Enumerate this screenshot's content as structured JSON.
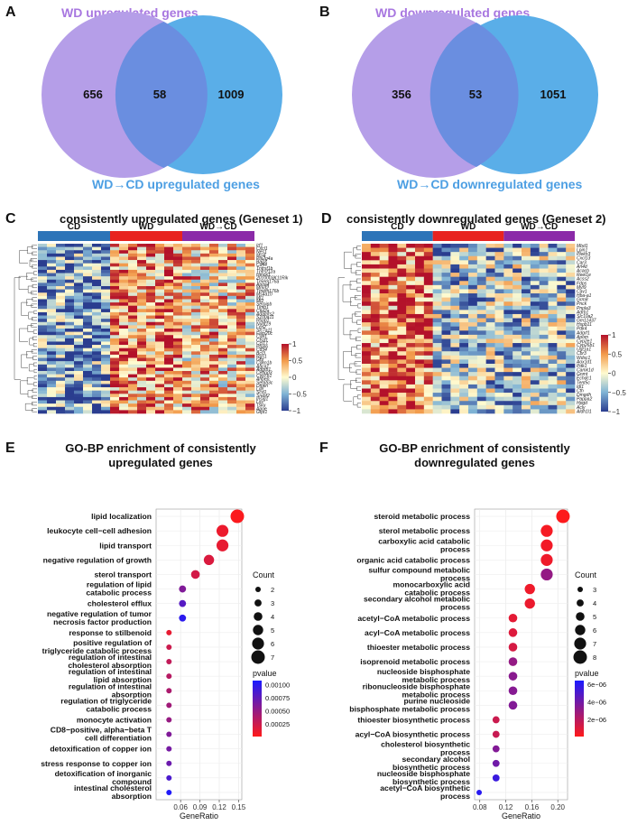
{
  "panels": {
    "A": {
      "label": "A",
      "title_left": "WD upregulated genes",
      "title_right": "WD→CD upregulated genes",
      "left_only": "656",
      "overlap": "58",
      "right_only": "1009",
      "colors": {
        "left": "#b59ee8",
        "right": "#5aaee8",
        "overlap": "#6a8ee0",
        "title_left": "#a877e0",
        "title_right": "#4d9fe3"
      }
    },
    "B": {
      "label": "B",
      "title_left": "WD downregulated genes",
      "title_right": "WD→CD downregulated genes",
      "left_only": "356",
      "overlap": "53",
      "right_only": "1051",
      "colors": {
        "left": "#b59ee8",
        "right": "#5aaee8",
        "overlap": "#6a8ee0",
        "title_left": "#a877e0",
        "title_right": "#4d9fe3"
      }
    },
    "C": {
      "label": "C",
      "title": "consistently upregulated genes (Geneset 1)",
      "groups": [
        "CD",
        "WD",
        "WD→CD"
      ],
      "group_colors": [
        "#2d74b8",
        "#e8231f",
        "#8b2aa8"
      ],
      "genes": [
        "Irf1",
        "Cxcl1",
        "Nes1",
        "Msi4",
        "Pla2g4a",
        "Bag3",
        "Cd44",
        "Tnfrsf1b",
        "Tnfrsf12a",
        "Hmox1",
        "2010003K11Rik",
        "Tmem176a",
        "Apoa4",
        "Mmd2",
        "Tmem176b",
        "Ms4a10",
        "Mt1",
        "Mt2",
        "Serpinb",
        "Timp1",
        "Ctla2a",
        "Adamts2",
        "S100a11",
        "Hspb1",
        "Nudt19",
        "Lcn2",
        "Slc7a11",
        "Fam20c",
        "Cd81",
        "Ctsd1",
        "Ccl17",
        "Ptpn6",
        "Cd34",
        "Bcl3",
        "Rgs1",
        "Ghr",
        "Cdkn1b",
        "Abca1",
        "Adgrb1",
        "Cebpd3",
        "Cyp7b1",
        "Anpep",
        "Sema3c",
        "Dmkn",
        "Ldlr",
        "Scd1",
        "Srebf2",
        "Insig1",
        "Lss",
        "Tsku",
        "Apoe",
        "Gfpt1"
      ],
      "colorbar": {
        "ticks": [
          "1",
          "0.5",
          "0",
          "−0.5",
          "−1"
        ],
        "values": [
          1,
          0.5,
          0,
          -0.5,
          -1
        ]
      }
    },
    "D": {
      "label": "D",
      "title": "consistently downregulated genes (Geneset 2)",
      "groups": [
        "CD",
        "WD",
        "WD→CD"
      ],
      "group_colors": [
        "#2d74b8",
        "#e8231f",
        "#8b2aa8"
      ],
      "genes": [
        "Mbd1",
        "Lpin1",
        "Plekh3",
        "Cxcl13",
        "Car3",
        "Arl4d",
        "Acacb",
        "Reel1e",
        "Acss2",
        "Fdps",
        "Myl9",
        "Cav1",
        "Hba-a1",
        "Grm8",
        "Pnck",
        "Pnpla3",
        "Adrb1",
        "Slc10a2",
        "Gm11437",
        "Hspb11",
        "Pdk4",
        "Adgrf1",
        "Apom",
        "Cyp2e1",
        "Cyp26b1",
        "Ugt1a1",
        "Cbr3",
        "Wdsc1",
        "Aox1d1",
        "Pdk1",
        "Camk1d",
        "Gnmt",
        "Echdc1",
        "Tent5c",
        "Idi1",
        "Cth",
        "Dmgdh",
        "Pappa2",
        "Hpgd",
        "Acly",
        "Aldh1l1"
      ],
      "colorbar": {
        "ticks": [
          "1",
          "0.5",
          "0",
          "−0.5",
          "−1"
        ],
        "values": [
          1,
          0.5,
          0,
          -0.5,
          -1
        ]
      }
    },
    "E": {
      "label": "E",
      "title_lines": [
        "GO-BP enrichment of consistently",
        "upregulated genes"
      ]
    },
    "F": {
      "label": "F",
      "title_lines": [
        "GO-BP enrichment of consistently",
        "downregulated genes"
      ]
    }
  },
  "chart_data": [
    {
      "panel": "E",
      "type": "scatter",
      "title": "GO-BP enrichment of consistently upregulated genes",
      "xlabel": "GeneRatio",
      "ylabel": "",
      "xlim": [
        0.022,
        0.155
      ],
      "xticks": [
        0.06,
        0.09,
        0.12,
        0.15
      ],
      "xticklabels": [
        "0.06",
        "0.09",
        "0.12",
        "0.15"
      ],
      "terms": [
        {
          "lines": [
            "lipid localization"
          ],
          "gene_ratio": 0.148,
          "count": 7,
          "pvalue": 3e-05
        },
        {
          "lines": [
            "leukocyte cell−cell adhesion"
          ],
          "gene_ratio": 0.125,
          "count": 6,
          "pvalue": 0.0001
        },
        {
          "lines": [
            "lipid transport"
          ],
          "gene_ratio": 0.125,
          "count": 6,
          "pvalue": 0.00012
        },
        {
          "lines": [
            "negative regulation of growth"
          ],
          "gene_ratio": 0.104,
          "count": 5,
          "pvalue": 0.00018
        },
        {
          "lines": [
            "sterol transport"
          ],
          "gene_ratio": 0.083,
          "count": 4,
          "pvalue": 0.00022
        },
        {
          "lines": [
            "regulation of lipid",
            "catabolic process"
          ],
          "gene_ratio": 0.063,
          "count": 3,
          "pvalue": 0.0006
        },
        {
          "lines": [
            "cholesterol efflux"
          ],
          "gene_ratio": 0.063,
          "count": 3,
          "pvalue": 0.0008
        },
        {
          "lines": [
            "negative regulation of tumor",
            "necrosis factor production"
          ],
          "gene_ratio": 0.063,
          "count": 3,
          "pvalue": 0.001
        },
        {
          "lines": [
            "response to stilbenoid"
          ],
          "gene_ratio": 0.042,
          "count": 2,
          "pvalue": 0.00012
        },
        {
          "lines": [
            "positive regulation of",
            "triglyceride catabolic process"
          ],
          "gene_ratio": 0.042,
          "count": 2,
          "pvalue": 0.00025
        },
        {
          "lines": [
            "regulation of intestinal",
            "cholesterol absorption"
          ],
          "gene_ratio": 0.042,
          "count": 2,
          "pvalue": 0.0003
        },
        {
          "lines": [
            "regulation of intestinal",
            "lipid absorption"
          ],
          "gene_ratio": 0.042,
          "count": 2,
          "pvalue": 0.00035
        },
        {
          "lines": [
            "regulation of intestinal",
            "absorption"
          ],
          "gene_ratio": 0.042,
          "count": 2,
          "pvalue": 0.0004
        },
        {
          "lines": [
            "regulation of triglyceride",
            "catabolic process"
          ],
          "gene_ratio": 0.042,
          "count": 2,
          "pvalue": 0.00045
        },
        {
          "lines": [
            "monocyte activation"
          ],
          "gene_ratio": 0.042,
          "count": 2,
          "pvalue": 0.0005
        },
        {
          "lines": [
            "CD8−positive, alpha−beta T",
            "cell differentiation"
          ],
          "gene_ratio": 0.042,
          "count": 2,
          "pvalue": 0.0006
        },
        {
          "lines": [
            "detoxification of copper ion"
          ],
          "gene_ratio": 0.042,
          "count": 2,
          "pvalue": 0.00065
        },
        {
          "lines": [
            "stress response to copper ion"
          ],
          "gene_ratio": 0.042,
          "count": 2,
          "pvalue": 0.0007
        },
        {
          "lines": [
            "detoxification of inorganic",
            "compound"
          ],
          "gene_ratio": 0.042,
          "count": 2,
          "pvalue": 0.00085
        },
        {
          "lines": [
            "intestinal cholesterol",
            "absorption"
          ],
          "gene_ratio": 0.042,
          "count": 2,
          "pvalue": 0.00105
        }
      ],
      "legend_count": {
        "title": "Count",
        "values": [
          2,
          3,
          4,
          5,
          6,
          7
        ]
      },
      "legend_color": {
        "title": "pvalue",
        "ticks": [
          0.001,
          0.00075,
          0.0005,
          0.00025
        ],
        "ticklabels": [
          "0.00100",
          "0.00075",
          "0.00050",
          "0.00025"
        ],
        "range": [
          1e-05,
          0.00108
        ],
        "low_color": "#ff1a1a",
        "high_color": "#1a1aff"
      }
    },
    {
      "panel": "F",
      "type": "scatter",
      "title": "GO-BP enrichment of consistently downregulated genes",
      "xlabel": "GeneRatio",
      "ylabel": "",
      "xlim": [
        0.072,
        0.215
      ],
      "xticks": [
        0.08,
        0.12,
        0.16,
        0.2
      ],
      "xticklabels": [
        "0.08",
        "0.12",
        "0.16",
        "0.20"
      ],
      "terms": [
        {
          "lines": [
            "steroid metabolic process"
          ],
          "gene_ratio": 0.208,
          "count": 8,
          "pvalue": 1e-07
        },
        {
          "lines": [
            "sterol metabolic process"
          ],
          "gene_ratio": 0.183,
          "count": 7,
          "pvalue": 3e-07
        },
        {
          "lines": [
            "carboxylic acid catabolic",
            "process"
          ],
          "gene_ratio": 0.183,
          "count": 7,
          "pvalue": 4e-07
        },
        {
          "lines": [
            "organic acid catabolic process"
          ],
          "gene_ratio": 0.183,
          "count": 7,
          "pvalue": 5e-07
        },
        {
          "lines": [
            "sulfur compound metabolic",
            "process"
          ],
          "gene_ratio": 0.183,
          "count": 7,
          "pvalue": 3e-06
        },
        {
          "lines": [
            "monocarboxylic acid",
            "catabolic process"
          ],
          "gene_ratio": 0.157,
          "count": 6,
          "pvalue": 5e-07
        },
        {
          "lines": [
            "secondary alcohol metabolic",
            "process"
          ],
          "gene_ratio": 0.157,
          "count": 6,
          "pvalue": 6e-07
        },
        {
          "lines": [
            "acetyl−CoA metabolic process"
          ],
          "gene_ratio": 0.131,
          "count": 5,
          "pvalue": 8e-07
        },
        {
          "lines": [
            "acyl−CoA metabolic process"
          ],
          "gene_ratio": 0.131,
          "count": 5,
          "pvalue": 1e-06
        },
        {
          "lines": [
            "thioester metabolic process"
          ],
          "gene_ratio": 0.131,
          "count": 5,
          "pvalue": 1.2e-06
        },
        {
          "lines": [
            "isoprenoid metabolic process"
          ],
          "gene_ratio": 0.131,
          "count": 5,
          "pvalue": 3e-06
        },
        {
          "lines": [
            "nucleoside bisphosphate",
            "metabolic process"
          ],
          "gene_ratio": 0.131,
          "count": 5,
          "pvalue": 3.3e-06
        },
        {
          "lines": [
            "ribonucleoside bisphosphate",
            "metabolic process"
          ],
          "gene_ratio": 0.131,
          "count": 5,
          "pvalue": 3.4e-06
        },
        {
          "lines": [
            "purine nucleoside",
            "bisphosphate metabolic process"
          ],
          "gene_ratio": 0.131,
          "count": 5,
          "pvalue": 3.5e-06
        },
        {
          "lines": [
            "thioester biosynthetic process"
          ],
          "gene_ratio": 0.105,
          "count": 4,
          "pvalue": 1.5e-06
        },
        {
          "lines": [
            "acyl−CoA biosynthetic process"
          ],
          "gene_ratio": 0.105,
          "count": 4,
          "pvalue": 1.6e-06
        },
        {
          "lines": [
            "cholesterol biosynthetic",
            "process"
          ],
          "gene_ratio": 0.105,
          "count": 4,
          "pvalue": 3.5e-06
        },
        {
          "lines": [
            "secondary alcohol",
            "biosynthetic process"
          ],
          "gene_ratio": 0.105,
          "count": 4,
          "pvalue": 4e-06
        },
        {
          "lines": [
            "nucleoside bisphosphate",
            "biosynthetic process"
          ],
          "gene_ratio": 0.105,
          "count": 4,
          "pvalue": 5.5e-06
        },
        {
          "lines": [
            "acetyl−CoA biosynthetic",
            "process"
          ],
          "gene_ratio": 0.079,
          "count": 3,
          "pvalue": 6e-06
        }
      ],
      "legend_count": {
        "title": "Count",
        "values": [
          3,
          4,
          5,
          6,
          7,
          8
        ]
      },
      "legend_color": {
        "title": "pvalue",
        "ticks": [
          6e-06,
          4e-06,
          2e-06
        ],
        "ticklabels": [
          "6e−06",
          "4e−06",
          "2e−06"
        ],
        "range": [
          5e-08,
          6.4e-06
        ],
        "low_color": "#ff1a1a",
        "high_color": "#1a1aff"
      }
    }
  ]
}
